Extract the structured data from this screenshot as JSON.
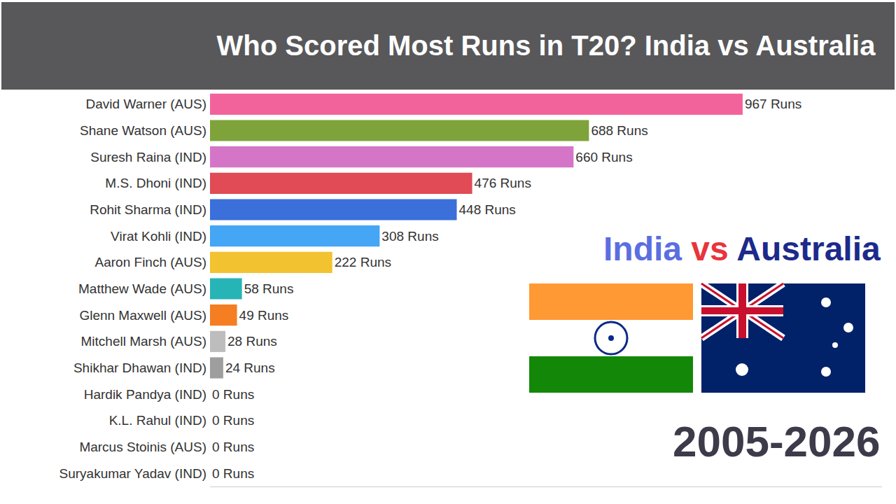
{
  "chart_data": {
    "type": "bar",
    "title": "Who Scored Most Runs in T20? India vs Australia",
    "orientation": "horizontal",
    "categories": [
      "David Warner (AUS)",
      "Shane Watson (AUS)",
      "Suresh Raina (IND)",
      "M.S. Dhoni (IND)",
      "Rohit Sharma (IND)",
      "Virat Kohli (IND)",
      "Aaron Finch (AUS)",
      "Matthew Wade (AUS)",
      "Glenn Maxwell (AUS)",
      "Mitchell Marsh (AUS)",
      "Shikhar Dhawan (IND)",
      "Hardik Pandya (IND)",
      "K.L. Rahul (IND)",
      "Marcus Stoinis (AUS)",
      "Suryakumar Yadav (IND)"
    ],
    "values": [
      967,
      688,
      660,
      476,
      448,
      308,
      222,
      58,
      49,
      28,
      24,
      0,
      0,
      0,
      0
    ],
    "value_labels": [
      "967 Runs",
      "688 Runs",
      "660 Runs",
      "476 Runs",
      "448 Runs",
      "308 Runs",
      "222 Runs",
      "58 Runs",
      "49 Runs",
      "28 Runs",
      "24 Runs",
      "0 Runs",
      "0 Runs",
      "0 Runs",
      "0 Runs"
    ],
    "colors": [
      "#f2639c",
      "#7ea33b",
      "#d575c8",
      "#e04b56",
      "#3b6fd9",
      "#44a6f5",
      "#f2c230",
      "#27b4b6",
      "#f57d22",
      "#bdbdbd",
      "#9e9e9e",
      "#9e9e9e",
      "#9e9e9e",
      "#9e9e9e",
      "#9e9e9e"
    ],
    "xlim": [
      0,
      1220
    ],
    "xticks": [],
    "tick_labels": "y",
    "data_labels": true,
    "grid": false,
    "annotations": [
      "India vs Australia",
      "2005-2026"
    ]
  }
}
